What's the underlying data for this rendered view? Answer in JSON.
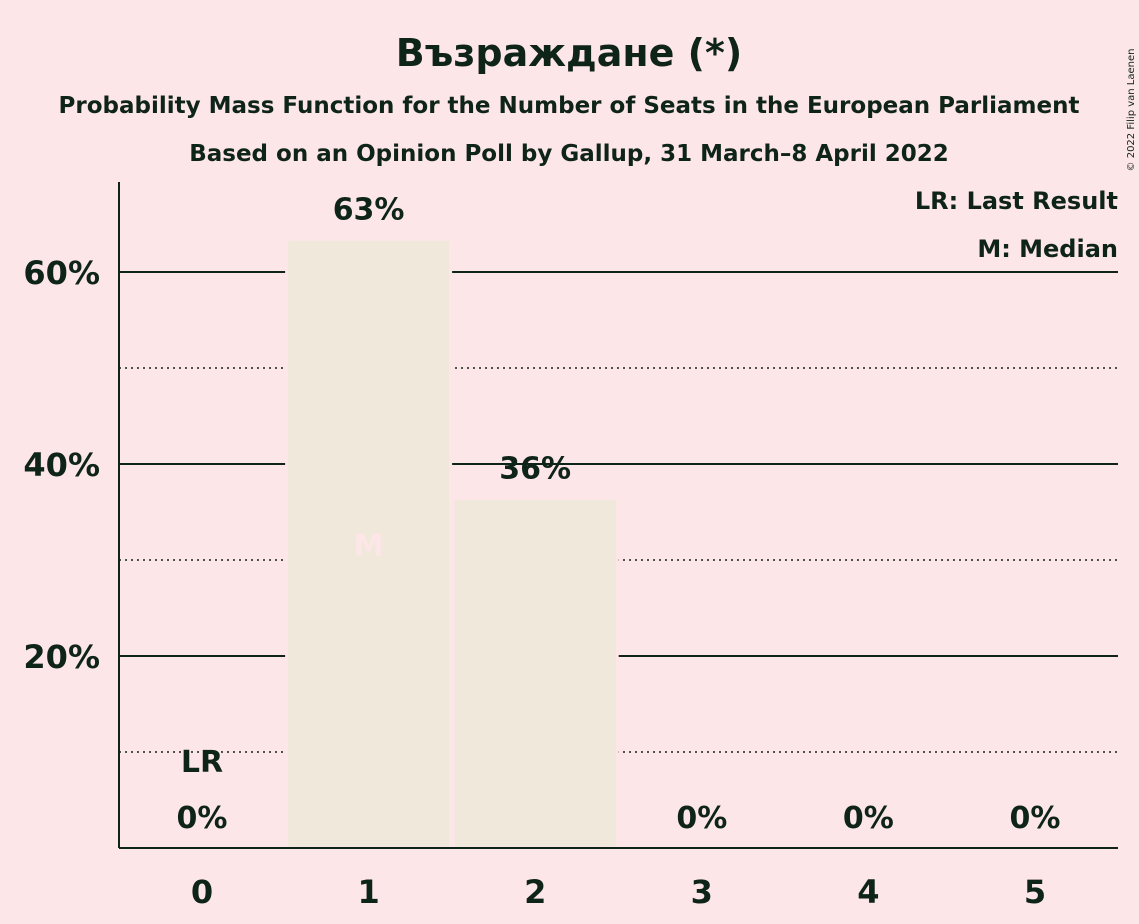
{
  "chart_data": {
    "type": "bar",
    "title": "Възраждане (*)",
    "subtitle": "Probability Mass Function for the Number of Seats in the European Parliament",
    "subtitle2": "Based on an Opinion Poll by Gallup, 31 March–8 April 2022",
    "categories": [
      "0",
      "1",
      "2",
      "3",
      "4",
      "5"
    ],
    "values": [
      0,
      63.4,
      36.4,
      0,
      0,
      0
    ],
    "data_labels": [
      "0%",
      "63%",
      "36%",
      "0%",
      "0%",
      "0%"
    ],
    "ylim": [
      0,
      69
    ],
    "y_ticks_major": [
      20,
      40,
      60
    ],
    "y_ticks_major_labels": [
      "20%",
      "40%",
      "60%"
    ],
    "y_ticks_minor": [
      10,
      30,
      50
    ],
    "grid": true,
    "median_index": 1,
    "median_marker": "M",
    "last_result_index": 0,
    "last_result_marker": "LR",
    "legend": {
      "placement": "top-right",
      "items": [
        "LR: Last Result",
        "M: Median"
      ]
    },
    "copyright": "© 2022 Filip van Laenen",
    "colors": {
      "background": "#FDE6E7",
      "bar": "#F0E8DA",
      "text": "#0F2418",
      "grid": "#0F2418",
      "median_marker": "#FDE6E7"
    }
  }
}
